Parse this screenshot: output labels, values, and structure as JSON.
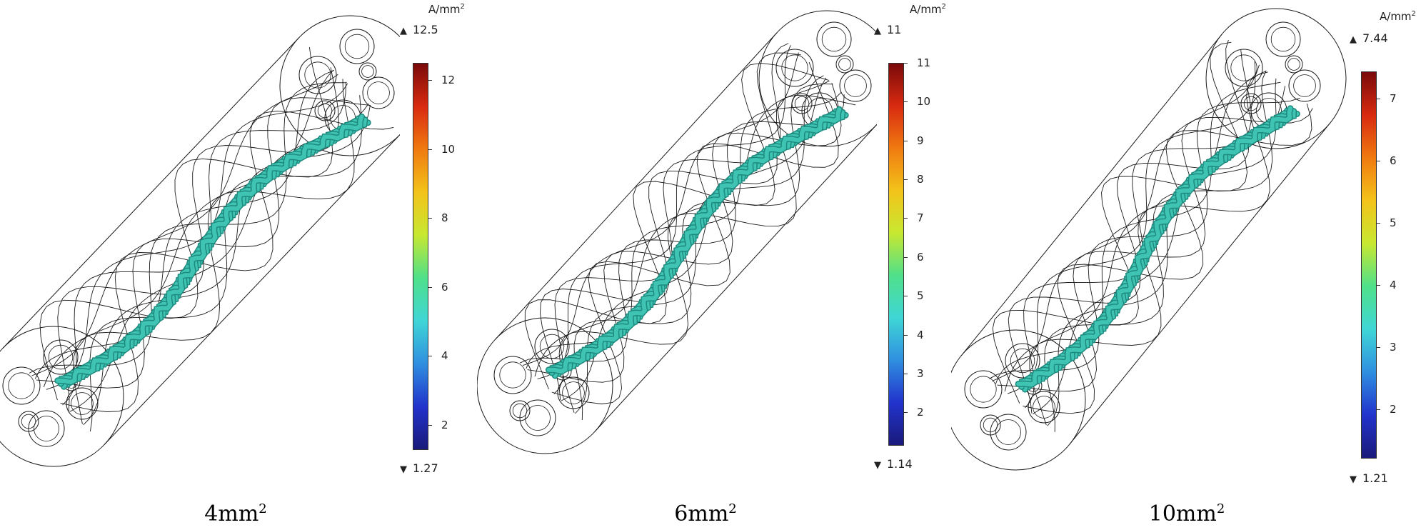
{
  "panels": [
    {
      "caption": "4mm",
      "caption_sup": "2",
      "unit": "A/mm",
      "unit_sup": "2",
      "max_label": "12.5",
      "min_label": "1.27",
      "range": [
        1.27,
        12.5
      ],
      "ticks": [
        "2",
        "4",
        "6",
        "8",
        "10",
        "12"
      ],
      "tick_values": [
        2,
        4,
        6,
        8,
        10,
        12
      ]
    },
    {
      "caption": "6mm",
      "caption_sup": "2",
      "unit": "A/mm",
      "unit_sup": "2",
      "max_label": "11",
      "min_label": "1.14",
      "range": [
        1.14,
        11
      ],
      "ticks": [
        "2",
        "3",
        "4",
        "5",
        "6",
        "7",
        "8",
        "9",
        "10",
        "11"
      ],
      "tick_values": [
        2,
        3,
        4,
        5,
        6,
        7,
        8,
        9,
        10,
        11
      ]
    },
    {
      "caption": "10mm",
      "caption_sup": "2",
      "unit": "A/mm",
      "unit_sup": "2",
      "max_label": "7.44",
      "min_label": "1.21",
      "range": [
        1.21,
        7.44
      ],
      "ticks": [
        "2",
        "3",
        "4",
        "5",
        "6",
        "7"
      ],
      "tick_values": [
        2,
        3,
        4,
        5,
        6,
        7
      ]
    }
  ],
  "colors": {
    "conductor": "#3fc4b4",
    "conductor_dark": "#1e8a7e",
    "wire": "#1a1a1a",
    "colormap": [
      "#1a1a7a",
      "#2233cc",
      "#2f8fe0",
      "#3fd6d6",
      "#4fe08a",
      "#c8e830",
      "#f3c31a",
      "#f07a10",
      "#d82a10",
      "#7a0a0a"
    ]
  }
}
